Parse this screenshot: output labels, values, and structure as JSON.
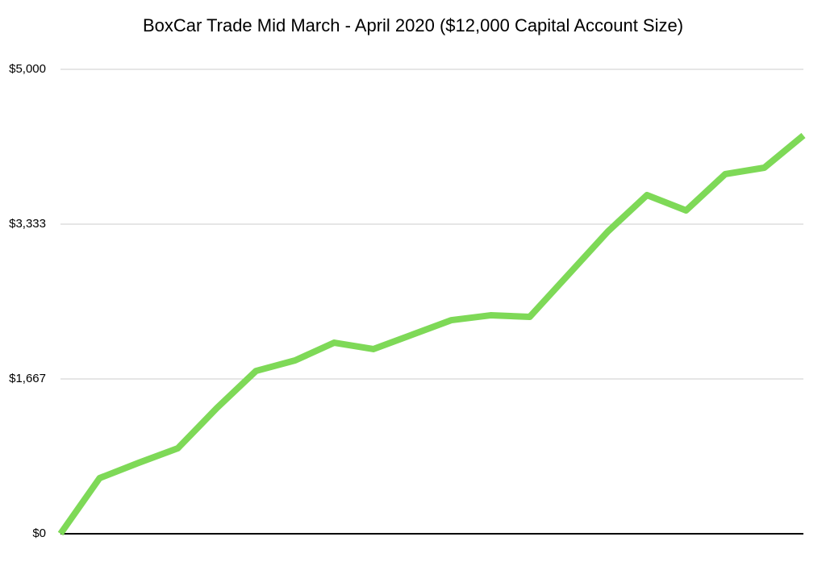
{
  "chart_data": {
    "type": "line",
    "title": "BoxCar Trade Mid March - April 2020 ($12,000 Capital Account Size)",
    "categories": [
      null,
      null,
      null,
      null,
      null,
      null,
      null,
      null,
      null,
      null,
      null,
      null,
      null,
      null,
      null,
      null,
      null,
      null,
      null,
      null
    ],
    "series": [
      {
        "name": null,
        "color": "#7ed957",
        "values": [
          0,
          599,
          764,
          920,
          1354,
          1753,
          1866,
          2057,
          1988,
          2144,
          2300,
          2352,
          2335,
          2795,
          3255,
          3646,
          3481,
          3872,
          3941,
          4288
        ]
      }
    ],
    "ylim": [
      0,
      5000
    ],
    "yticks": [
      {
        "value": 0,
        "label": "$0"
      },
      {
        "value": 1667,
        "label": "$1,667"
      },
      {
        "value": 3333,
        "label": "$3,333"
      },
      {
        "value": 5000,
        "label": "$5,000"
      }
    ],
    "grid": true
  }
}
